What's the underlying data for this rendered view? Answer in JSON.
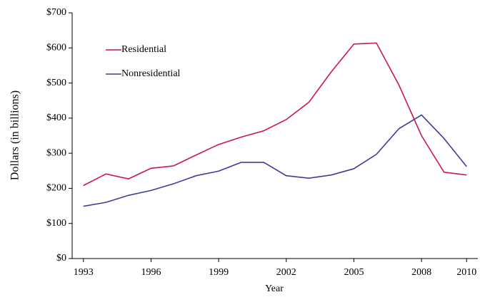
{
  "chart_data": {
    "type": "line",
    "x_label": "Year",
    "y_label": "Dollars (in billions)",
    "x": [
      1993,
      1994,
      1995,
      1996,
      1997,
      1998,
      1999,
      2000,
      2001,
      2002,
      2003,
      2004,
      2005,
      2006,
      2007,
      2008,
      2009,
      2010
    ],
    "series": [
      {
        "name": "Residential",
        "color": "#c8174e",
        "values": [
          208,
          241,
          227,
          257,
          264,
          295,
          325,
          346,
          364,
          396,
          445,
          532,
          611,
          614,
          494,
          350,
          246,
          238
        ]
      },
      {
        "name": "Nonresidential",
        "color": "#3b3f99",
        "values": [
          149,
          160,
          180,
          194,
          213,
          236,
          249,
          274,
          274,
          236,
          229,
          238,
          256,
          297,
          370,
          409,
          342,
          262
        ]
      }
    ],
    "xlim": [
      1992.5,
      2010.5
    ],
    "xticks": [
      1993,
      1996,
      1999,
      2002,
      2005,
      2008,
      2010
    ],
    "ylim": [
      0,
      700
    ],
    "yticks": [
      {
        "value": 0,
        "label": "$0"
      },
      {
        "value": 100,
        "label": "$100"
      },
      {
        "value": 200,
        "label": "$200"
      },
      {
        "value": 300,
        "label": "$300"
      },
      {
        "value": 400,
        "label": "$400"
      },
      {
        "value": 500,
        "label": "$500"
      },
      {
        "value": 600,
        "label": "$600"
      },
      {
        "value": 700,
        "label": "$700"
      }
    ],
    "grid": false,
    "legend": "upper left"
  }
}
